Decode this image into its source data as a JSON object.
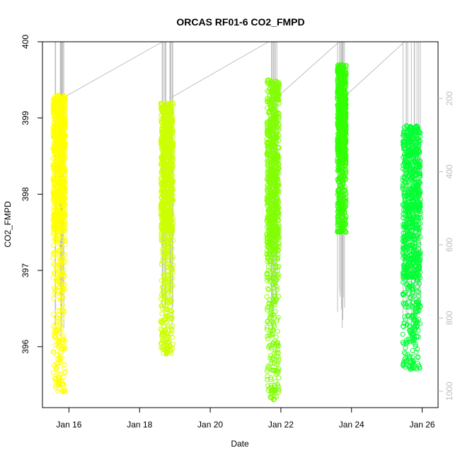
{
  "chart_data": {
    "type": "scatter",
    "title": "ORCAS RF01-6 CO2_FMPD",
    "xlabel": "Date",
    "ylabel": "CO2_FMPD",
    "x_tick_labels": [
      "Jan 16",
      "Jan 18",
      "Jan 20",
      "Jan 22",
      "Jan 24",
      "Jan 26"
    ],
    "x_tick_values": [
      16,
      18,
      20,
      22,
      24,
      26
    ],
    "xlim": [
      15.25,
      26.45
    ],
    "ylim": [
      395.2,
      400.0
    ],
    "y_ticks": [
      396,
      397,
      398,
      399,
      400
    ],
    "right_axis": {
      "ticks": [
        200,
        400,
        600,
        800,
        1000
      ],
      "lim": [
        1045,
        45
      ],
      "reversed": true,
      "color": "#bebebe",
      "series": "grey trace"
    },
    "grid": false,
    "series": [
      {
        "color": "#FFFF00",
        "x_range": [
          15.55,
          15.9
        ],
        "y_min": 395.4,
        "y_max": 399.35,
        "y_dense": [
          397.5,
          399.3
        ]
      },
      {
        "color": "#CCFF00",
        "x_range": [
          18.6,
          18.95
        ],
        "y_min": 395.9,
        "y_max": 399.3,
        "y_dense": [
          397.5,
          399.2
        ]
      },
      {
        "color": "#80FF00",
        "x_range": [
          21.6,
          21.95
        ],
        "y_min": 395.3,
        "y_max": 399.55,
        "y_dense": [
          397.2,
          399.5
        ]
      },
      {
        "color": "#33FF00",
        "x_range": [
          23.6,
          23.85
        ],
        "y_min": 397.5,
        "y_max": 399.85,
        "y_dense": [
          398.4,
          399.7
        ]
      },
      {
        "color": "#00FF33",
        "x_range": [
          25.45,
          25.95
        ],
        "y_min": 395.7,
        "y_max": 399.4,
        "y_dense": [
          396.9,
          398.9
        ]
      }
    ]
  }
}
